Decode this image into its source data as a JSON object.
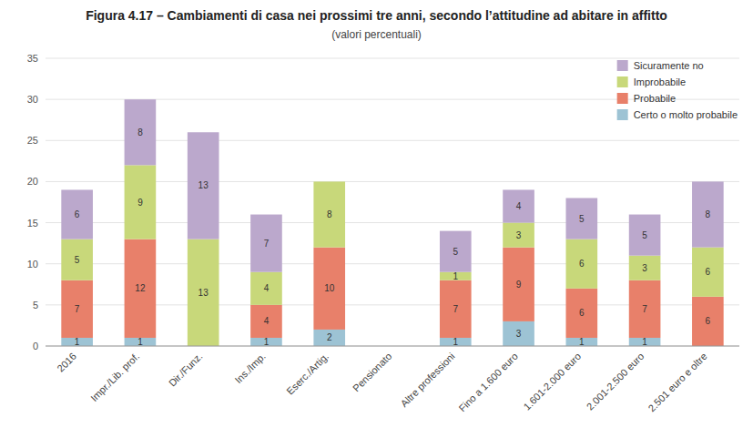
{
  "chart_data": {
    "type": "bar",
    "stacked": true,
    "title": "Figura 4.17 – Cambiamenti di casa nei prossimi tre anni, secondo l’attitudine ad abitare in affitto",
    "subtitle": "(valori percentuali)",
    "categories": [
      "2016",
      "Impr./Lib. prof.",
      "Dir./Funz.",
      "Ins./Imp.",
      "Eserc./Artig.",
      "Pensionato",
      "Altre professioni",
      "Fino a 1.600 euro",
      "1.601-2.000 euro",
      "2.001-2.500 euro",
      "2.501 euro e oltre"
    ],
    "series": [
      {
        "name": "Certo o molto probabile",
        "color": "#9DC3D4",
        "values": [
          1,
          1,
          0,
          1,
          2,
          0,
          1,
          3,
          1,
          1,
          0
        ]
      },
      {
        "name": "Probabile",
        "color": "#E8806A",
        "values": [
          7,
          12,
          0,
          4,
          10,
          0,
          7,
          9,
          6,
          7,
          6
        ]
      },
      {
        "name": "Improbabile",
        "color": "#C8D87A",
        "values": [
          5,
          9,
          13,
          4,
          8,
          0,
          1,
          3,
          6,
          3,
          6
        ]
      },
      {
        "name": "Sicuramente no",
        "color": "#BBA8CC",
        "values": [
          6,
          8,
          13,
          7,
          0,
          0,
          5,
          4,
          5,
          5,
          8
        ]
      }
    ],
    "ylim": [
      0,
      35
    ],
    "yticks": [
      0,
      5,
      10,
      15,
      20,
      25,
      30,
      35
    ],
    "grid": true,
    "legend": "upper right",
    "data_labels": true
  }
}
